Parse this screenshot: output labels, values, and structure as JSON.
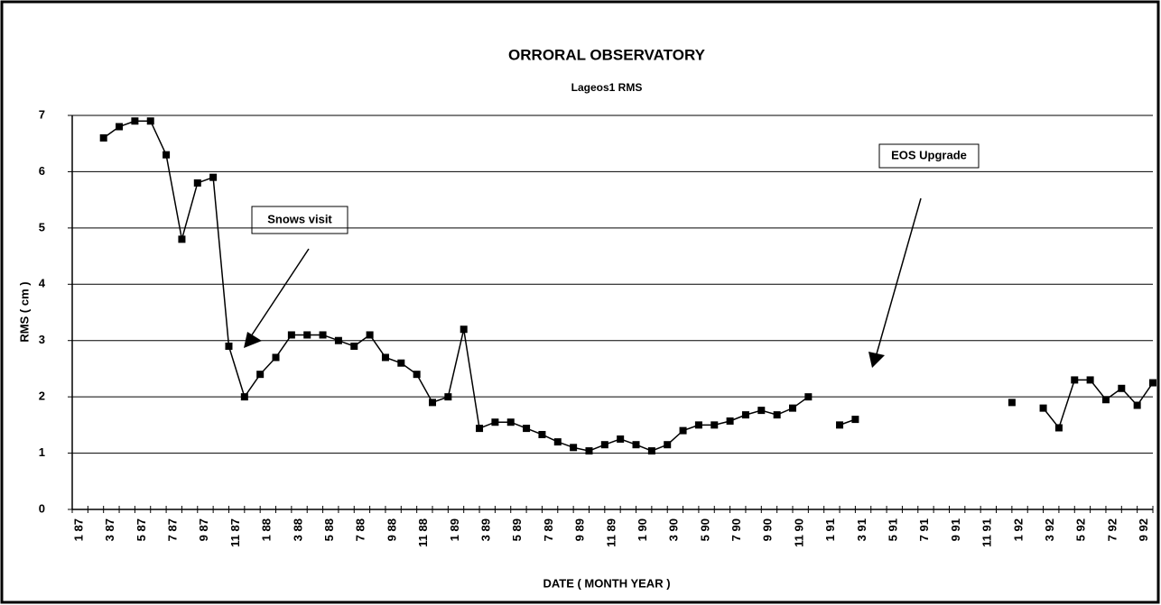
{
  "chart_data": {
    "type": "line",
    "title": "ORRORAL OBSERVATORY",
    "subtitle": "Lageos1 RMS",
    "x_label": "DATE ( MONTH YEAR )",
    "y_label": "RMS ( cm )",
    "categories": [
      "1 87",
      null,
      "3 87",
      null,
      "5 87",
      null,
      "7 87",
      null,
      "9 87",
      null,
      "11 87",
      null,
      "1 88",
      null,
      "3 88",
      null,
      "5 88",
      null,
      "7 88",
      null,
      "9 88",
      null,
      "11 88",
      null,
      "1 89",
      null,
      "3 89",
      null,
      "5 89",
      null,
      "7 89",
      null,
      "9 89",
      null,
      "11 89",
      null,
      "1 90",
      null,
      "3 90",
      null,
      "5 90",
      null,
      "7 90",
      null,
      "9 90",
      null,
      "11 90",
      null,
      "1 91",
      null,
      "3 91",
      null,
      "5 91",
      null,
      "7 91",
      null,
      "9 91",
      null,
      "11 91",
      null,
      "1 92",
      null,
      "3 92",
      null,
      "5 92",
      null,
      "7 92",
      null,
      "9 92",
      null
    ],
    "series": [
      {
        "name": "Lageos1 RMS",
        "color": "#000000",
        "values": [
          null,
          null,
          6.6,
          6.8,
          6.9,
          6.9,
          6.3,
          4.8,
          5.8,
          5.9,
          2.9,
          2.0,
          2.4,
          2.7,
          3.1,
          3.1,
          3.1,
          3.0,
          2.9,
          3.1,
          2.7,
          2.6,
          2.4,
          1.9,
          2.0,
          3.2,
          1.44,
          1.55,
          1.55,
          1.44,
          1.33,
          1.2,
          1.1,
          1.04,
          1.15,
          1.25,
          1.15,
          1.04,
          1.15,
          1.4,
          1.5,
          1.5,
          1.57,
          1.68,
          1.76,
          1.68,
          1.8,
          2.0,
          null,
          1.5,
          1.6,
          null,
          null,
          null,
          null,
          null,
          null,
          null,
          null,
          null,
          1.9,
          null,
          1.8,
          1.45,
          2.3,
          2.3,
          1.95,
          2.15,
          1.85,
          2.25
        ]
      }
    ],
    "ylim": [
      0,
      7
    ],
    "yticks": [
      0,
      1,
      2,
      3,
      4,
      5,
      6,
      7
    ],
    "grid": true,
    "annotations": [
      {
        "text": "Snows visit"
      },
      {
        "text": "EOS Upgrade"
      }
    ]
  }
}
